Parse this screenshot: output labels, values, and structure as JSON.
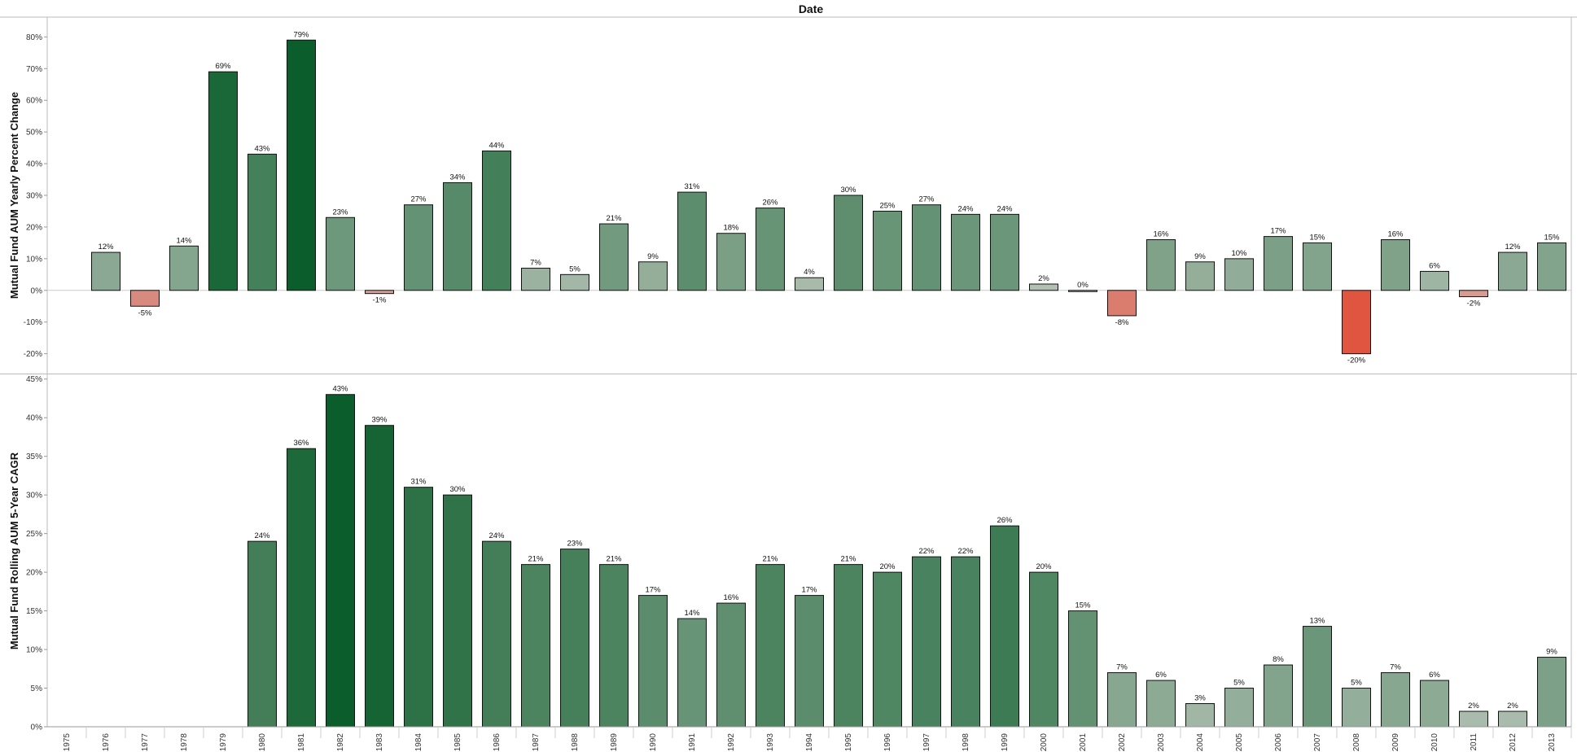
{
  "chart_data": {
    "type": "bar",
    "title": "Date",
    "categories": [
      "1975",
      "1976",
      "1977",
      "1978",
      "1979",
      "1980",
      "1981",
      "1982",
      "1983",
      "1984",
      "1985",
      "1986",
      "1987",
      "1988",
      "1989",
      "1990",
      "1991",
      "1992",
      "1993",
      "1994",
      "1995",
      "1996",
      "1997",
      "1998",
      "1999",
      "2000",
      "2001",
      "2002",
      "2003",
      "2004",
      "2005",
      "2006",
      "2007",
      "2008",
      "2009",
      "2010",
      "2011",
      "2012",
      "2013"
    ],
    "panels": [
      {
        "ylabel": "Mutual Fund AUM Yearly Percent Change",
        "ylim": [
          -26,
          86
        ],
        "yticks": [
          -20,
          -10,
          0,
          10,
          20,
          30,
          40,
          50,
          60,
          70,
          80
        ],
        "ytick_labels": [
          "-20%",
          "-10%",
          "0%",
          "10%",
          "20%",
          "30%",
          "40%",
          "50%",
          "60%",
          "70%",
          "80%"
        ],
        "values": [
          null,
          12,
          -5,
          14,
          69,
          43,
          79,
          23,
          -1,
          27,
          34,
          44,
          7,
          5,
          21,
          9,
          31,
          18,
          26,
          4,
          30,
          25,
          27,
          24,
          24,
          2,
          0,
          -8,
          16,
          9,
          10,
          17,
          15,
          -20,
          16,
          6,
          -2,
          12,
          15
        ],
        "labels": [
          "",
          "12%",
          "-5%",
          "14%",
          "69%",
          "43%",
          "79%",
          "23%",
          "-1%",
          "27%",
          "34%",
          "44%",
          "7%",
          "5%",
          "21%",
          "9%",
          "31%",
          "18%",
          "26%",
          "4%",
          "30%",
          "25%",
          "27%",
          "24%",
          "24%",
          "2%",
          "0%",
          "-8%",
          "16%",
          "9%",
          "10%",
          "17%",
          "15%",
          "-20%",
          "16%",
          "6%",
          "-2%",
          "12%",
          "15%"
        ]
      },
      {
        "ylabel": "Mutual Fund Rolling AUM 5-Year CAGR",
        "ylim": [
          0,
          45.5
        ],
        "yticks": [
          0,
          5,
          10,
          15,
          20,
          25,
          30,
          35,
          40,
          45
        ],
        "ytick_labels": [
          "0%",
          "5%",
          "10%",
          "15%",
          "20%",
          "25%",
          "30%",
          "35%",
          "40%",
          "45%"
        ],
        "values": [
          null,
          null,
          null,
          null,
          null,
          24,
          36,
          43,
          39,
          31,
          30,
          24,
          21,
          23,
          21,
          17,
          14,
          16,
          21,
          17,
          21,
          20,
          22,
          22,
          26,
          20,
          15,
          7,
          6,
          3,
          5,
          8,
          13,
          5,
          7,
          6,
          2,
          2,
          9
        ],
        "labels": [
          "",
          "",
          "",
          "",
          "",
          "24%",
          "36%",
          "43%",
          "39%",
          "31%",
          "30%",
          "24%",
          "21%",
          "23%",
          "21%",
          "17%",
          "14%",
          "16%",
          "21%",
          "17%",
          "21%",
          "20%",
          "22%",
          "22%",
          "26%",
          "20%",
          "15%",
          "7%",
          "6%",
          "3%",
          "5%",
          "8%",
          "13%",
          "5%",
          "7%",
          "6%",
          "2%",
          "2%",
          "9%"
        ]
      }
    ],
    "colors": {
      "positive_low": "#c7ccc4",
      "positive_high": "#0b5e2b",
      "negative_low": "#d4b3ad",
      "negative_high": "#e05540",
      "bar_outline": "#111111",
      "axis": "#999999"
    },
    "grid": false,
    "legend": "none"
  }
}
